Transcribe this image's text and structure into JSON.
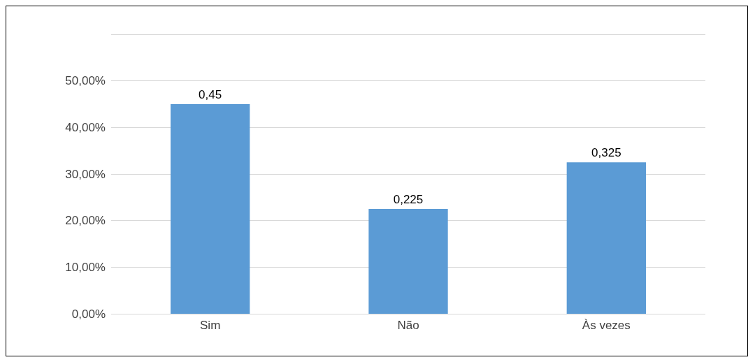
{
  "chart_data": {
    "type": "bar",
    "categories": [
      "Sim",
      "Não",
      "Às vezes"
    ],
    "values": [
      0.45,
      0.225,
      0.325
    ],
    "value_labels": [
      "0,45",
      "0,225",
      "0,325"
    ],
    "color": "#5b9bd5",
    "ylim": [
      0,
      0.6
    ],
    "yticks": [
      {
        "value": 0,
        "label": "0,00%"
      },
      {
        "value": 0.1,
        "label": "10,00%"
      },
      {
        "value": 0.2,
        "label": "20,00%"
      },
      {
        "value": 0.3,
        "label": "30,00%"
      },
      {
        "value": 0.4,
        "label": "40,00%"
      },
      {
        "value": 0.5,
        "label": "50,00%"
      },
      {
        "value": 0.6,
        "label": null
      }
    ],
    "grid": true
  }
}
